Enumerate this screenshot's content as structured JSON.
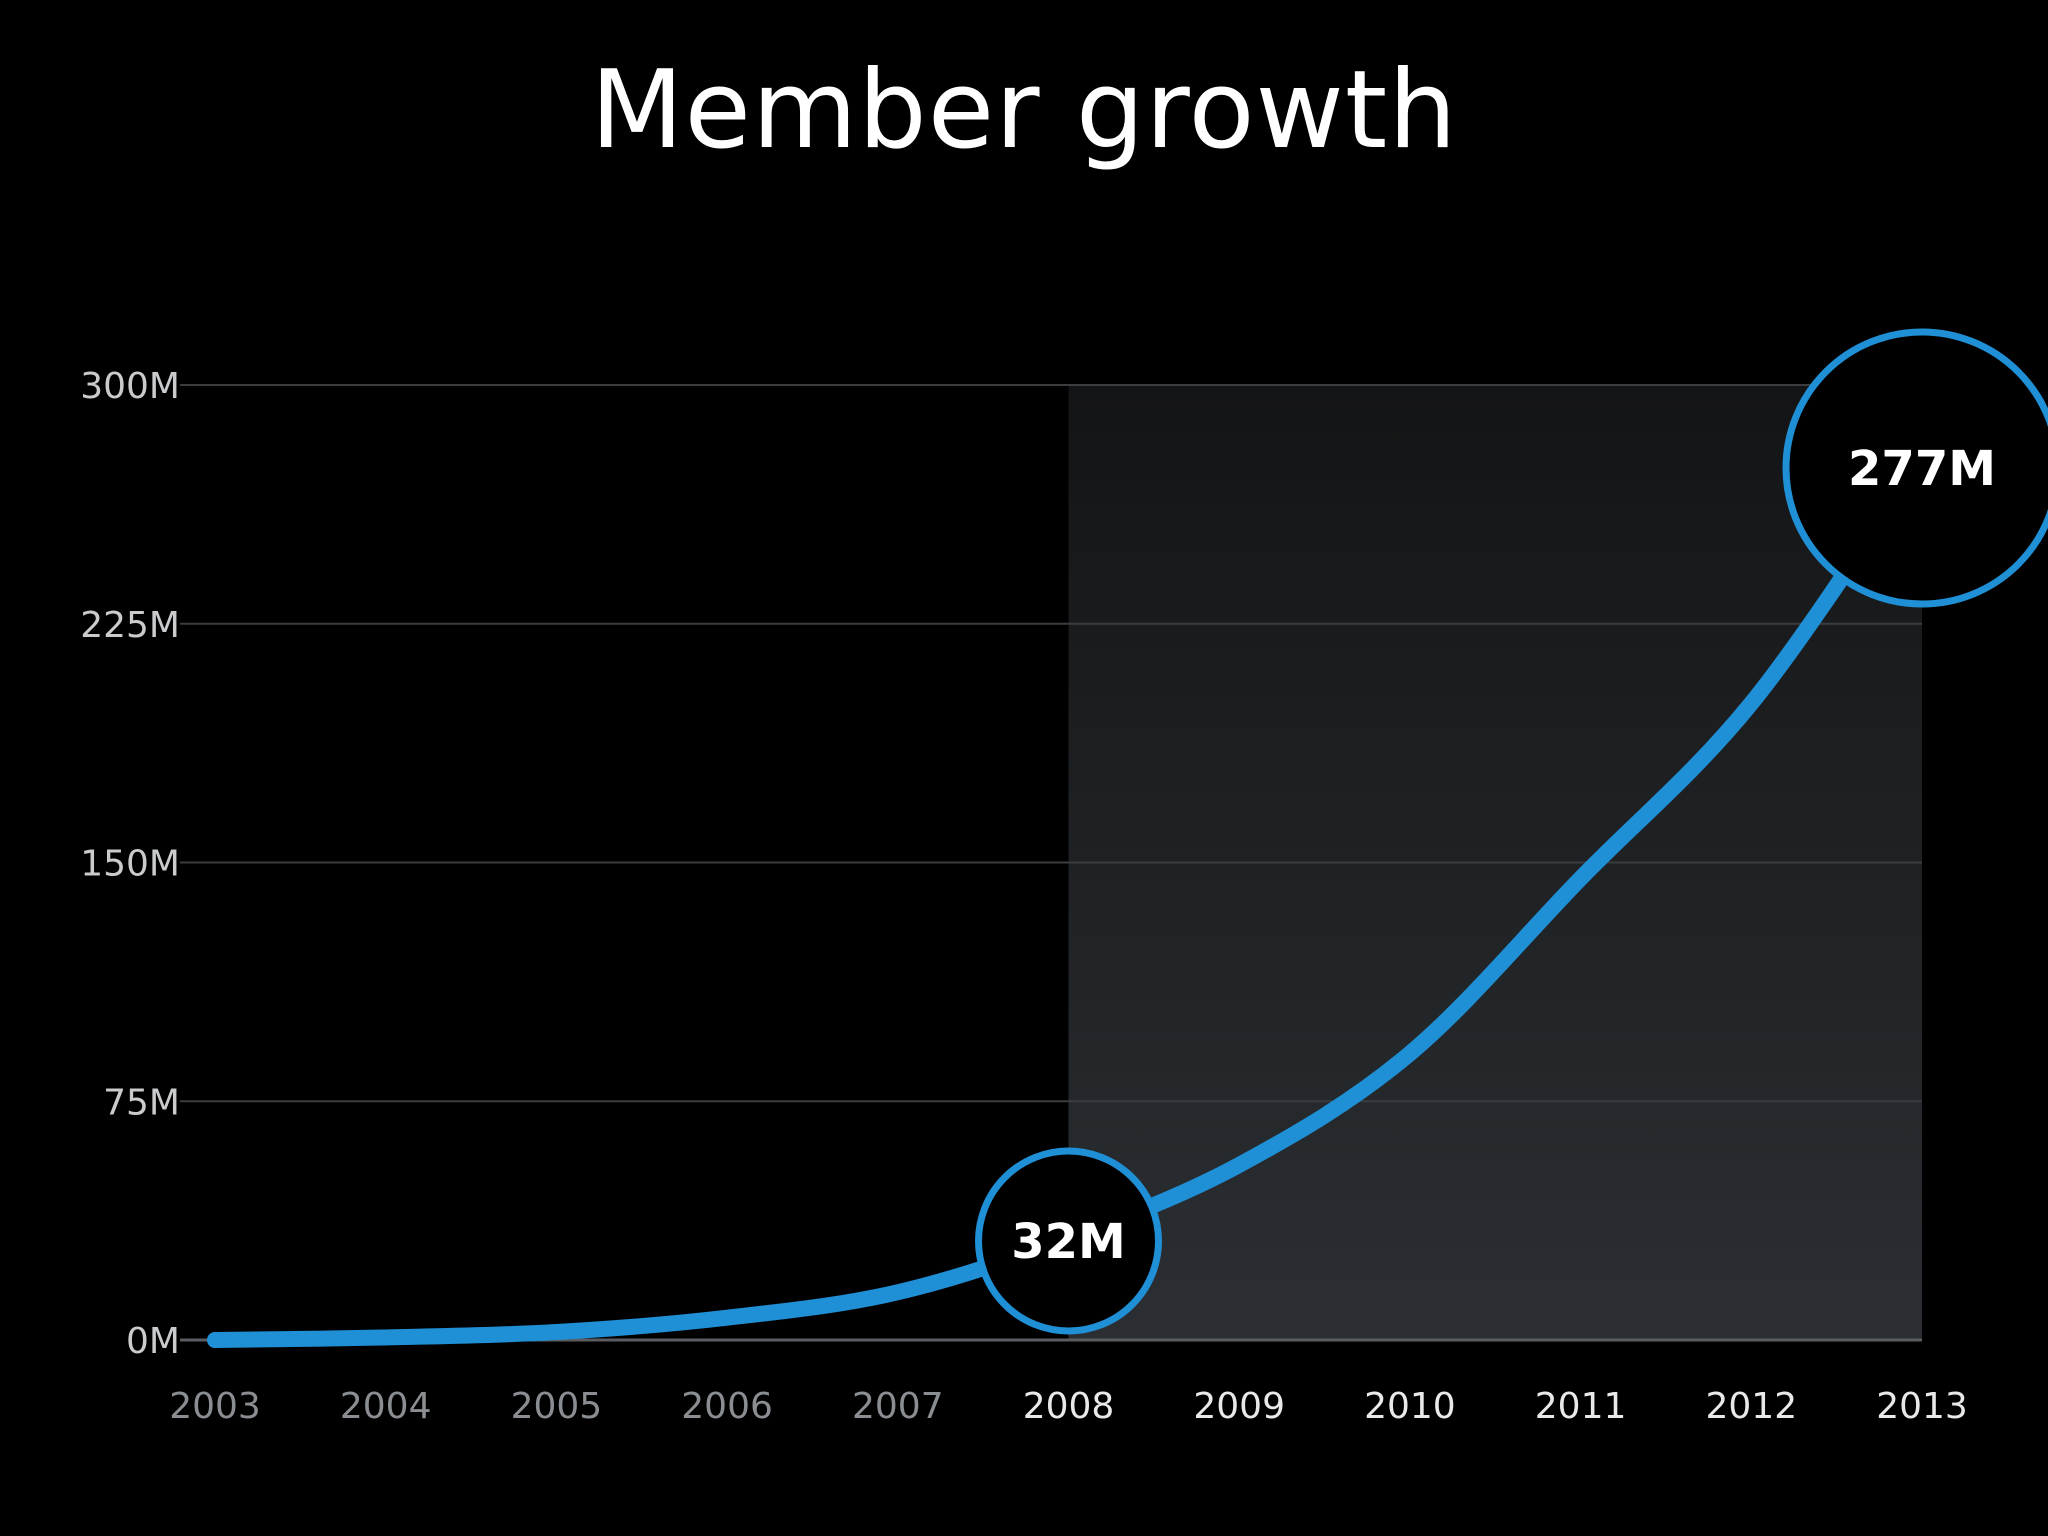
{
  "title": "Member growth",
  "colors": {
    "background": "#000000",
    "line": "#1f8fd6",
    "grid": "#3a3c3f",
    "highlight_top": "#131415",
    "highlight_bottom": "#2b2f33",
    "axis_label_dim": "#8a8d91",
    "axis_label_bright": "#e8e9ea",
    "y_label": "#c9cbcd"
  },
  "chart_data": {
    "type": "line",
    "title": "Member growth",
    "xlabel": "",
    "ylabel": "",
    "x": [
      2003,
      2004,
      2005,
      2006,
      2007,
      2008,
      2009,
      2010,
      2011,
      2012,
      2013
    ],
    "x_tick_labels": [
      "2003",
      "2004",
      "2005",
      "2006",
      "2007",
      "2008",
      "2009",
      "2010",
      "2011",
      "2012",
      "2013"
    ],
    "y_tick_labels": [
      "0M",
      "75M",
      "150M",
      "225M",
      "300M"
    ],
    "y_ticks": [
      0,
      75,
      150,
      225,
      300
    ],
    "ylim": [
      0,
      300
    ],
    "xlim": [
      2003,
      2013
    ],
    "grid": true,
    "highlight_range": [
      2008,
      2013
    ],
    "series": [
      {
        "values": [
          0,
          0.8,
          2.5,
          7,
          15,
          32,
          55,
          90,
          145,
          200,
          277
        ]
      }
    ],
    "annotations": [
      {
        "x": 2008,
        "y": 32,
        "label": "32M"
      },
      {
        "x": 2013,
        "y": 277,
        "label": "277M"
      }
    ]
  }
}
